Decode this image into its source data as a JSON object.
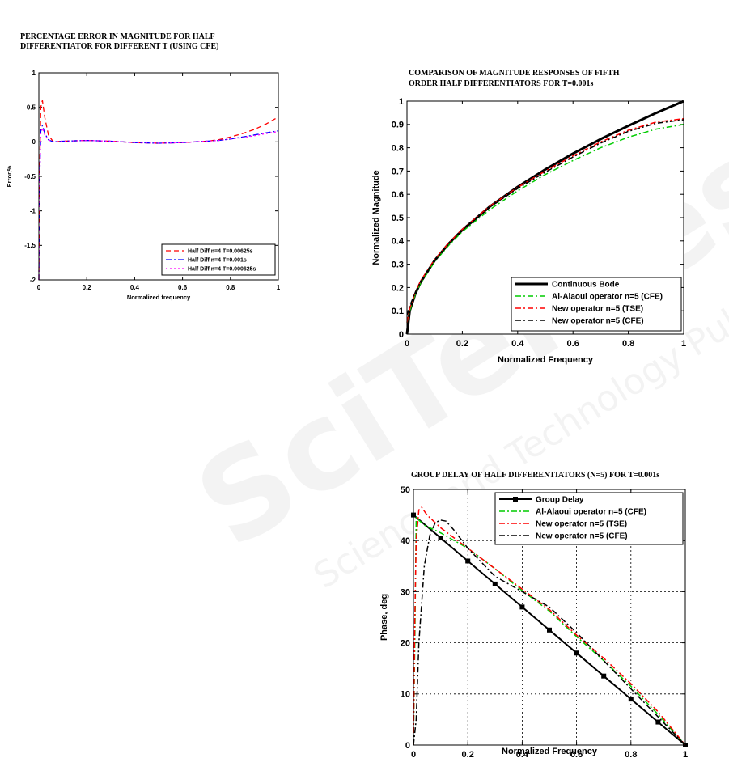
{
  "watermark": {
    "text_main": "SciTePress",
    "text_sub": "Science and Technology Publications"
  },
  "chart_data": [
    {
      "type": "line",
      "title_lines": [
        "PERCENTAGE ERROR  IN MAGNITUDE FOR HALF",
        "DIFFERENTIATOR FOR DIFFERENT T (USING CFE)"
      ],
      "xlabel": "Normalized frequency",
      "ylabel": "Error,%",
      "xlim": [
        0,
        1
      ],
      "ylim": [
        -2,
        1
      ],
      "xticks": [
        0,
        0.2,
        0.4,
        0.6,
        0.8,
        1
      ],
      "xtick_labels": [
        "0",
        "0.2",
        "0.4",
        "0.6",
        "0.8",
        "1"
      ],
      "yticks": [
        -2,
        -1.5,
        -1,
        -0.5,
        0,
        0.5,
        1
      ],
      "ytick_labels": [
        "-2",
        "-1.5",
        "-1",
        "-0.5",
        "0",
        "0.5",
        "1"
      ],
      "grid": false,
      "legend_position": "bottom-right",
      "series": [
        {
          "name": "Half Diff n=4 T=0.00625s",
          "color": "#ff0000",
          "dash": "6,4",
          "x": [
            0,
            0.003,
            0.008,
            0.015,
            0.025,
            0.04,
            0.06,
            0.1,
            0.2,
            0.3,
            0.4,
            0.5,
            0.6,
            0.7,
            0.75,
            0.8,
            0.85,
            0.9,
            0.95,
            1.0
          ],
          "y": [
            -2,
            -0.5,
            0.5,
            0.6,
            0.35,
            0.1,
            0.0,
            0.01,
            0.02,
            0.01,
            -0.01,
            -0.02,
            -0.01,
            0.01,
            0.03,
            0.07,
            0.12,
            0.18,
            0.26,
            0.36
          ]
        },
        {
          "name": "Half Diff n=4 T=0.001s",
          "color": "#0000ff",
          "dash": "7,3,2,3",
          "x": [
            0,
            0.003,
            0.008,
            0.015,
            0.025,
            0.04,
            0.06,
            0.1,
            0.2,
            0.3,
            0.4,
            0.5,
            0.6,
            0.7,
            0.75,
            0.8,
            0.85,
            0.9,
            0.95,
            1.0
          ],
          "y": [
            -2,
            -0.6,
            0.15,
            0.24,
            0.12,
            0.03,
            0.0,
            0.01,
            0.02,
            0.01,
            -0.01,
            -0.02,
            -0.01,
            0.01,
            0.02,
            0.04,
            0.07,
            0.1,
            0.13,
            0.16
          ]
        },
        {
          "name": "Half Diff n=4 T=0.000625s",
          "color": "#ff00ff",
          "dash": "2,3",
          "x": [
            0,
            0.003,
            0.008,
            0.015,
            0.025,
            0.04,
            0.06,
            0.1,
            0.2,
            0.3,
            0.4,
            0.5,
            0.6,
            0.7,
            0.75,
            0.8,
            0.85,
            0.9,
            0.95,
            1.0
          ],
          "y": [
            -2,
            -0.6,
            0.12,
            0.2,
            0.1,
            0.03,
            0.0,
            0.01,
            0.02,
            0.01,
            -0.01,
            -0.02,
            -0.01,
            0.01,
            0.02,
            0.04,
            0.06,
            0.09,
            0.12,
            0.15
          ]
        }
      ]
    },
    {
      "type": "line",
      "title_lines": [
        "COMPARISON OF MAGNITUDE RESPONSES OF FIFTH",
        "ORDER HALF DIFFERENTIATORS FOR T=0.001s"
      ],
      "xlabel": "Normalized Frequency",
      "ylabel": "Normalized Magnitude",
      "xlim": [
        0,
        1
      ],
      "ylim": [
        0,
        1
      ],
      "xticks": [
        0,
        0.2,
        0.4,
        0.6,
        0.8,
        1
      ],
      "xtick_labels": [
        "0",
        "0.2",
        "0.4",
        "0.6",
        "0.8",
        "1"
      ],
      "yticks": [
        0,
        0.1,
        0.2,
        0.3,
        0.4,
        0.5,
        0.6,
        0.7,
        0.8,
        0.9,
        1
      ],
      "ytick_labels": [
        "0",
        "0.1",
        "0.2",
        "0.3",
        "0.4",
        "0.5",
        "0.6",
        "0.7",
        "0.8",
        "0.9",
        "1"
      ],
      "grid": false,
      "legend_position": "bottom-right",
      "series": [
        {
          "name": "Continuous Bode",
          "color": "#000000",
          "dash": "",
          "width": 3,
          "x": [
            0,
            0.01,
            0.03,
            0.05,
            0.1,
            0.15,
            0.2,
            0.3,
            0.4,
            0.5,
            0.6,
            0.7,
            0.8,
            0.9,
            1.0
          ],
          "y": [
            0,
            0.1,
            0.173,
            0.224,
            0.316,
            0.387,
            0.447,
            0.548,
            0.632,
            0.707,
            0.775,
            0.837,
            0.894,
            0.949,
            1.0
          ]
        },
        {
          "name": "Al-Alaoui operator n=5 (CFE)",
          "color": "#00cc00",
          "dash": "7,3,2,3",
          "width": 1.5,
          "x": [
            0,
            0.01,
            0.03,
            0.05,
            0.1,
            0.15,
            0.2,
            0.3,
            0.4,
            0.5,
            0.6,
            0.7,
            0.8,
            0.9,
            1.0
          ],
          "y": [
            0.05,
            0.1,
            0.17,
            0.22,
            0.31,
            0.38,
            0.44,
            0.535,
            0.615,
            0.685,
            0.745,
            0.8,
            0.845,
            0.88,
            0.9
          ]
        },
        {
          "name": "New operator n=5 (TSE)",
          "color": "#ff0000",
          "dash": "7,3,2,3",
          "width": 1.5,
          "x": [
            0,
            0.01,
            0.03,
            0.05,
            0.1,
            0.15,
            0.2,
            0.3,
            0.4,
            0.5,
            0.6,
            0.7,
            0.8,
            0.9,
            1.0
          ],
          "y": [
            0.05,
            0.11,
            0.18,
            0.23,
            0.32,
            0.39,
            0.45,
            0.55,
            0.63,
            0.7,
            0.765,
            0.825,
            0.875,
            0.91,
            0.925
          ]
        },
        {
          "name": "New operator n=5 (CFE)",
          "color": "#000000",
          "dash": "7,3,2,3",
          "width": 1.5,
          "x": [
            0,
            0.01,
            0.03,
            0.05,
            0.1,
            0.15,
            0.2,
            0.3,
            0.4,
            0.5,
            0.6,
            0.7,
            0.8,
            0.9,
            1.0
          ],
          "y": [
            0.08,
            0.12,
            0.18,
            0.225,
            0.315,
            0.385,
            0.445,
            0.545,
            0.625,
            0.695,
            0.76,
            0.82,
            0.87,
            0.905,
            0.92
          ]
        }
      ]
    },
    {
      "type": "line",
      "title_lines": [
        "GROUP DELAY OF HALF DIFFERENTIATORS (N=5) FOR T=0.001s"
      ],
      "xlabel": "Normalized Frequency",
      "ylabel": "Phase, deg",
      "xlim": [
        0,
        1
      ],
      "ylim": [
        0,
        50
      ],
      "xticks": [
        0,
        0.2,
        0.4,
        0.6,
        0.8,
        1
      ],
      "xtick_labels": [
        "0",
        "0.2",
        "0.4",
        "0.6",
        "0.8",
        "1"
      ],
      "yticks": [
        0,
        10,
        20,
        30,
        40,
        50
      ],
      "ytick_labels": [
        "0",
        "10",
        "20",
        "30",
        "40",
        "50"
      ],
      "grid": true,
      "legend_position": "top-right",
      "series": [
        {
          "name": "Group Delay",
          "color": "#000000",
          "dash": "",
          "width": 2,
          "marker": "square",
          "x": [
            0,
            0.1,
            0.2,
            0.3,
            0.4,
            0.5,
            0.6,
            0.7,
            0.8,
            0.9,
            1.0
          ],
          "y": [
            45,
            40.5,
            36,
            31.5,
            27,
            22.5,
            18,
            13.5,
            9,
            4.5,
            0
          ]
        },
        {
          "name": "Al-Alaoui operator n=5 (CFE)",
          "color": "#00cc00",
          "dash": "7,3,2,3",
          "width": 1.5,
          "x": [
            0,
            0.005,
            0.01,
            0.02,
            0.04,
            0.06,
            0.1,
            0.2,
            0.3,
            0.4,
            0.5,
            0.6,
            0.7,
            0.8,
            0.9,
            1.0
          ],
          "y": [
            0,
            20,
            44.5,
            44,
            43,
            42.5,
            41.5,
            38.5,
            34.5,
            30.2,
            26.2,
            21.2,
            16.5,
            11.5,
            6,
            0
          ]
        },
        {
          "name": "New operator n=5 (TSE)",
          "color": "#ff0000",
          "dash": "7,3,2,3",
          "width": 1.5,
          "x": [
            0,
            0.005,
            0.01,
            0.02,
            0.03,
            0.05,
            0.1,
            0.2,
            0.3,
            0.4,
            0.5,
            0.6,
            0.7,
            0.8,
            0.9,
            1.0
          ],
          "y": [
            0,
            25,
            40,
            46,
            46.5,
            45,
            42.5,
            38.5,
            34.5,
            30.5,
            26.5,
            21.5,
            17,
            12,
            6.5,
            0
          ]
        },
        {
          "name": "New operator n=5 (CFE)",
          "color": "#000000",
          "dash": "7,3,2,3",
          "width": 1.5,
          "x": [
            0,
            0.01,
            0.02,
            0.04,
            0.06,
            0.08,
            0.1,
            0.12,
            0.15,
            0.2,
            0.3,
            0.4,
            0.5,
            0.6,
            0.7,
            0.8,
            0.9,
            1.0
          ],
          "y": [
            0,
            5,
            20,
            35,
            41,
            43.5,
            44,
            43.8,
            42,
            38.5,
            33,
            30,
            27,
            22,
            16.5,
            11,
            5.5,
            0
          ]
        }
      ]
    }
  ]
}
